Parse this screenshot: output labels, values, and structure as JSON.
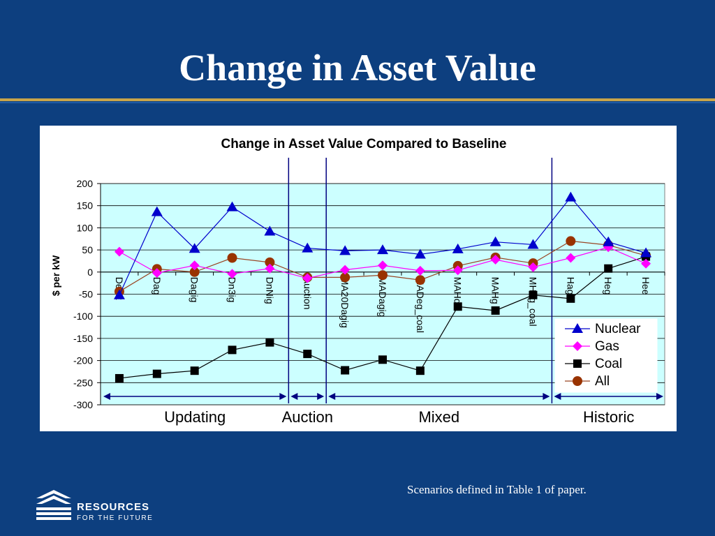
{
  "slide": {
    "title": "Change in Asset Value",
    "footnote": "Scenarios defined in Table 1 of paper.",
    "logo": {
      "name": "resources-for-the-future-logo",
      "line1": "RESOURCES",
      "line2": "FOR THE FUTURE"
    }
  },
  "colors": {
    "background": "#0d3f7f",
    "plot_area": "#ccffff",
    "nuclear": "#0000cc",
    "gas": "#ff00ff",
    "coal": "#000000",
    "all": "#993300",
    "all_line": "#994422",
    "divider": "#000080"
  },
  "chart_data": {
    "type": "line",
    "title": "Change in Asset Value Compared to Baseline",
    "ylabel": "$ per kW",
    "xlabel": "",
    "ylim": [
      -300,
      200
    ],
    "yticks": [
      200,
      150,
      100,
      50,
      0,
      -50,
      -100,
      -150,
      -200,
      -250,
      -300
    ],
    "grid": true,
    "legend_position": "bottom-right",
    "categories": [
      "Denit",
      "Dag",
      "Dagig",
      "Dn3ig",
      "DnNig",
      "Auction",
      "MA20Dagig",
      "MADagig",
      "MADeg_coal",
      "MAHde",
      "MAHg",
      "MHeg_coal",
      "Hag",
      "Heg",
      "Hee"
    ],
    "series": [
      {
        "name": "Nuclear",
        "marker": "triangle",
        "values": [
          -52,
          136,
          53,
          147,
          92,
          54,
          48,
          50,
          40,
          52,
          68,
          62,
          169,
          68,
          43
        ]
      },
      {
        "name": "Gas",
        "marker": "diamond",
        "values": [
          46,
          -2,
          15,
          -4,
          8,
          -14,
          5,
          15,
          3,
          4,
          28,
          11,
          32,
          56,
          19
        ]
      },
      {
        "name": "Coal",
        "marker": "square",
        "values": [
          -240,
          -230,
          -223,
          -176,
          -159,
          -185,
          -222,
          -198,
          -223,
          -78,
          -87,
          -52,
          -60,
          8,
          35
        ]
      },
      {
        "name": "All",
        "marker": "circle",
        "values": [
          -44,
          7,
          0,
          32,
          22,
          -12,
          -12,
          -7,
          -18,
          14,
          33,
          20,
          70,
          61,
          37
        ]
      }
    ],
    "dividers_after_index": [
      4,
      5,
      11
    ],
    "regions": [
      {
        "label": "Updating",
        "from_index": 0,
        "to_index": 4
      },
      {
        "label": "Auction",
        "from_index": 5,
        "to_index": 5
      },
      {
        "label": "Mixed",
        "from_index": 6,
        "to_index": 11
      },
      {
        "label": "Historic",
        "from_index": 12,
        "to_index": 14
      }
    ]
  }
}
